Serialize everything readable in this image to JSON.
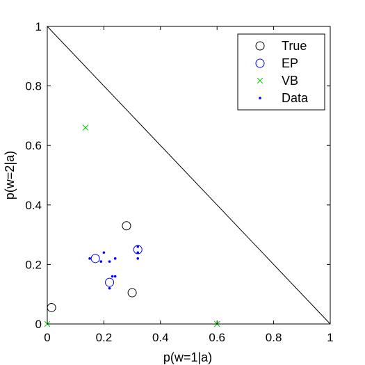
{
  "chart_data": {
    "type": "scatter",
    "xlabel": "p(w=1|a)",
    "ylabel": "p(w=2|a)",
    "xlim": [
      0,
      1
    ],
    "ylim": [
      0,
      1
    ],
    "x_ticks": [
      "0",
      "0.2",
      "0.4",
      "0.6",
      "0.8",
      "1"
    ],
    "y_ticks": [
      "0",
      "0.2",
      "0.4",
      "0.6",
      "0.8",
      "1"
    ],
    "x_tick_values": [
      0,
      0.2,
      0.4,
      0.6,
      0.8,
      1
    ],
    "y_tick_values": [
      0,
      0.2,
      0.4,
      0.6,
      0.8,
      1
    ],
    "legend_position": "top-right",
    "reference_line": {
      "x": [
        0,
        1
      ],
      "y": [
        1,
        0
      ]
    },
    "series": [
      {
        "name": "True",
        "marker": "circle-open",
        "color": "#000000",
        "x": [
          0.015,
          0.28,
          0.3
        ],
        "y": [
          0.055,
          0.33,
          0.105
        ]
      },
      {
        "name": "EP",
        "marker": "circle-open",
        "color": "#0000ff",
        "x": [
          0.17,
          0.22,
          0.32
        ],
        "y": [
          0.22,
          0.14,
          0.25
        ]
      },
      {
        "name": "VB",
        "marker": "x",
        "color": "#00cc00",
        "x": [
          0.0,
          0.135,
          0.6
        ],
        "y": [
          0.0,
          0.66,
          0.0
        ]
      },
      {
        "name": "Data",
        "marker": "dot",
        "color": "#0000ff",
        "x": [
          0.15,
          0.19,
          0.2,
          0.22,
          0.24,
          0.22,
          0.23,
          0.24,
          0.32,
          0.32,
          0.32
        ],
        "y": [
          0.22,
          0.21,
          0.24,
          0.21,
          0.22,
          0.12,
          0.16,
          0.16,
          0.26,
          0.24,
          0.22
        ]
      }
    ]
  }
}
